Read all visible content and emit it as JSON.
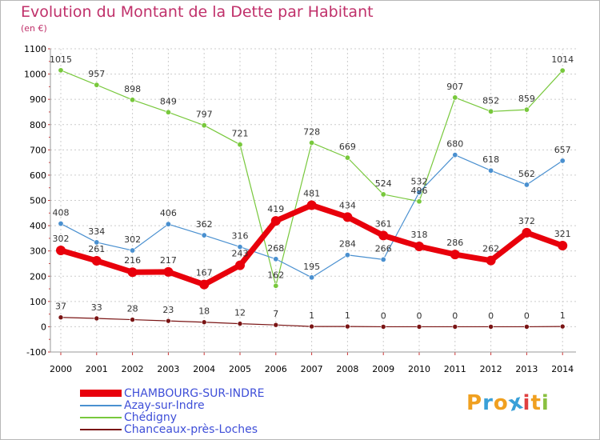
{
  "header": {
    "title": "Evolution du Montant de la Dette par Habitant",
    "unit": "(en €)"
  },
  "logo": {
    "letters": [
      "P",
      "r",
      "o",
      "x",
      "i",
      "t",
      "i"
    ],
    "colors": [
      "#f0a020",
      "#3aa0d8",
      "#f0a020",
      "#3aa0d8",
      "#e04040",
      "#f0a020",
      "#8ac040"
    ]
  },
  "chart_data": {
    "type": "line",
    "title": "Evolution du Montant de la Dette par Habitant",
    "ylabel": "(en €)",
    "xlabel": "",
    "ylim": [
      -100,
      1100
    ],
    "yticks": [
      -100,
      0,
      100,
      200,
      300,
      400,
      500,
      600,
      700,
      800,
      900,
      1000,
      1100
    ],
    "categories": [
      "2000",
      "2001",
      "2002",
      "2003",
      "2004",
      "2005",
      "2006",
      "2007",
      "2008",
      "2009",
      "2010",
      "2011",
      "2012",
      "2013",
      "2014"
    ],
    "grid": true,
    "legend_position": "bottom-left",
    "series": [
      {
        "name": "CHAMBOURG-SUR-INDRE",
        "color": "#e8000b",
        "values": [
          302,
          261,
          216,
          217,
          167,
          243,
          419,
          481,
          434,
          361,
          318,
          286,
          262,
          372,
          321
        ],
        "labels": [
          "302",
          "261",
          "216",
          "217",
          "167",
          "243",
          "419",
          "481",
          "434",
          "361",
          "318",
          "286",
          "262",
          "372",
          "321"
        ]
      },
      {
        "name": "Azay-sur-Indre",
        "color": "#4a90d0",
        "values": [
          408,
          334,
          302,
          406,
          362,
          316,
          268,
          195,
          284,
          266,
          532,
          680,
          618,
          562,
          657
        ],
        "labels": [
          "408",
          "334",
          "302",
          "406",
          "362",
          "316",
          "268",
          "195",
          "284",
          "266",
          "532",
          "680",
          "618",
          "562",
          "657"
        ]
      },
      {
        "name": "Chédigny",
        "color": "#78c83c",
        "values": [
          1015,
          957,
          898,
          849,
          797,
          721,
          162,
          728,
          669,
          524,
          496,
          907,
          852,
          859,
          1014
        ],
        "labels": [
          "1015",
          "957",
          "898",
          "849",
          "797",
          "721",
          "162",
          "728",
          "669",
          "524",
          "496",
          "907",
          "852",
          "859",
          "1014"
        ]
      },
      {
        "name": "Chanceaux-près-Loches",
        "color": "#7a1414",
        "values": [
          37,
          33,
          28,
          23,
          18,
          12,
          7,
          1,
          1,
          0,
          0,
          0,
          0,
          0,
          1
        ],
        "labels": [
          "37",
          "33",
          "28",
          "23",
          "18",
          "12",
          "7",
          "1",
          "1",
          "0",
          "0",
          "0",
          "0",
          "0",
          "1"
        ]
      }
    ]
  }
}
